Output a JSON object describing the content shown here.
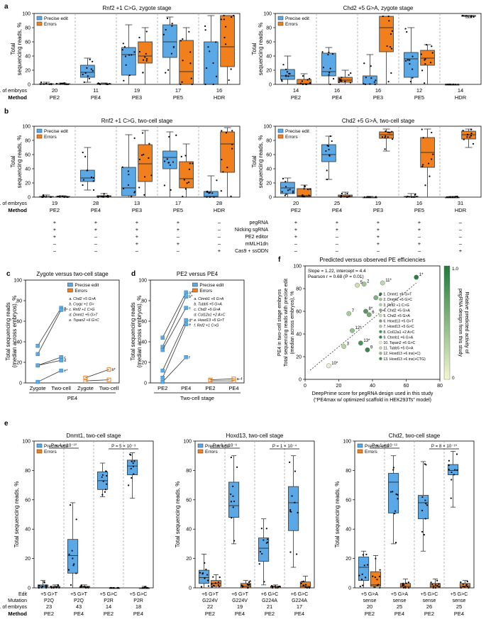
{
  "colors": {
    "precise": "#5aa9e6",
    "errors": "#f07f1c",
    "box_stroke": "#333333",
    "dash": "#9a9a9a",
    "green_dark": "#1f7a3a",
    "green_light": "#f5f7d0"
  },
  "panels": {
    "a": {
      "letter": "a"
    },
    "b": {
      "letter": "b"
    },
    "c": {
      "letter": "c"
    },
    "d": {
      "letter": "d"
    },
    "e": {
      "letter": "e"
    },
    "f": {
      "letter": "f"
    }
  },
  "common": {
    "ylabel_ab": [
      "Total",
      "sequencing reads, %"
    ],
    "ylabel_cd": [
      "Total sequencing reads",
      "(median across embryos), %"
    ],
    "ylabel_e": "Total sequencing reads, %",
    "legend_precise": "Precise edit",
    "legend_errors": "Errors",
    "row_embryos": "No. of embryos",
    "row_method": "Method",
    "row_edit": "Edit",
    "row_mutation": "Mutation"
  },
  "conditions_table": {
    "rows": [
      "pegRNA",
      "Nicking sgRNA",
      "PE2 editor",
      "mMLH1dn",
      "Cas9 + ssODN"
    ],
    "values": [
      [
        "+",
        "+",
        "+",
        "+",
        "–"
      ],
      [
        "+",
        "+",
        "+",
        "+",
        "–"
      ],
      [
        "+",
        "–",
        "+",
        "–",
        "–"
      ],
      [
        "–",
        "–",
        "+",
        "+",
        "–"
      ],
      [
        "–",
        "–",
        "–",
        "–",
        "+"
      ]
    ]
  },
  "chart_data": [
    {
      "panel": "a-left",
      "type": "box",
      "title": "Rnf2 +1 C>G, zygote stage",
      "ylim": [
        0,
        100
      ],
      "yticks": [
        0,
        20,
        40,
        60,
        80,
        100
      ],
      "categories": [
        "PE2",
        "PE4",
        "PE3",
        "PE5",
        "HDR"
      ],
      "embryos": [
        "20",
        "11",
        "19",
        "17",
        "16"
      ],
      "series": [
        {
          "name": "Precise edit",
          "box": [
            [
              0,
              0,
              0,
              1,
              3
            ],
            [
              3,
              10,
              17,
              27,
              37
            ],
            [
              0,
              13,
              42,
              52,
              84
            ],
            [
              0,
              38,
              60,
              84,
              95
            ],
            [
              0,
              0,
              0,
              60,
              97
            ]
          ]
        },
        {
          "name": "Errors",
          "box": [
            [
              0,
              0,
              0,
              1,
              2
            ],
            [
              0,
              0,
              0,
              1,
              2
            ],
            [
              0,
              30,
              40,
              60,
              80
            ],
            [
              0,
              0,
              18,
              62,
              80
            ],
            [
              0,
              25,
              53,
              97,
              97
            ]
          ]
        }
      ]
    },
    {
      "panel": "a-right",
      "type": "box",
      "title": "Chd2 +5 G>A, zygote stage",
      "ylim": [
        0,
        100
      ],
      "yticks": [
        0,
        20,
        40,
        60,
        80,
        100
      ],
      "categories": [
        "PE2",
        "PE4",
        "PE3",
        "PE5",
        "HDR"
      ],
      "embryos": [
        "14",
        "16",
        "16",
        "12",
        "14"
      ],
      "series": [
        {
          "name": "Precise edit",
          "box": [
            [
              0,
              7,
              12,
              21,
              40
            ],
            [
              0,
              12,
              18,
              44,
              52
            ],
            [
              0,
              0,
              0,
              12,
              42
            ],
            [
              0,
              10,
              36,
              45,
              80
            ],
            [
              0,
              0,
              0,
              0,
              0
            ]
          ]
        },
        {
          "name": "Errors",
          "box": [
            [
              0,
              0,
              1,
              7,
              15
            ],
            [
              0,
              3,
              6,
              10,
              20
            ],
            [
              0,
              46,
              80,
              96,
              96
            ],
            [
              0,
              27,
              37,
              48,
              56
            ],
            [
              94,
              96,
              97,
              97,
              97
            ]
          ]
        }
      ]
    },
    {
      "panel": "b-left",
      "type": "box",
      "title": "Rnf2 +1 C>G, two-cell stage",
      "ylim": [
        0,
        100
      ],
      "yticks": [
        0,
        20,
        40,
        60,
        80,
        100
      ],
      "categories": [
        "PE2",
        "PE4",
        "PE3",
        "PE5",
        "HDR"
      ],
      "embryos": [
        "19",
        "28",
        "13",
        "17",
        "28"
      ],
      "series": [
        {
          "name": "Precise edit",
          "box": [
            [
              0,
              0,
              0,
              1,
              3
            ],
            [
              10,
              22,
              27,
              38,
              70
            ],
            [
              0,
              2,
              13,
              42,
              88
            ],
            [
              0,
              40,
              56,
              65,
              92
            ],
            [
              0,
              0,
              1,
              8,
              30
            ]
          ]
        },
        {
          "name": "Errors",
          "box": [
            [
              0,
              0,
              0,
              1,
              2
            ],
            [
              0,
              0,
              1,
              2,
              5
            ],
            [
              0,
              22,
              47,
              74,
              94
            ],
            [
              0,
              13,
              26,
              50,
              75
            ],
            [
              0,
              35,
              75,
              92,
              98
            ]
          ]
        }
      ]
    },
    {
      "panel": "b-right",
      "type": "box",
      "title": "Chd2 +5 G>A, two-cell stage",
      "ylim": [
        0,
        100
      ],
      "yticks": [
        0,
        20,
        40,
        60,
        80,
        100
      ],
      "categories": [
        "PE2",
        "PE4",
        "PE3",
        "PE5",
        "HDR"
      ],
      "embryos": [
        "20",
        "25",
        "19",
        "16",
        "31"
      ],
      "series": [
        {
          "name": "Precise edit",
          "box": [
            [
              0,
              5,
              13,
              21,
              27
            ],
            [
              25,
              50,
              60,
              74,
              86
            ],
            [
              0,
              0,
              0,
              0,
              1
            ],
            [
              0,
              0,
              0,
              1,
              5
            ],
            [
              0,
              0,
              0,
              0,
              1
            ]
          ]
        },
        {
          "name": "Errors",
          "box": [
            [
              0,
              1,
              2,
              12,
              17
            ],
            [
              0,
              0,
              1,
              3,
              7
            ],
            [
              65,
              83,
              88,
              92,
              96
            ],
            [
              0,
              42,
              63,
              84,
              96
            ],
            [
              70,
              82,
              88,
              93,
              96
            ]
          ]
        }
      ]
    },
    {
      "panel": "c",
      "type": "line",
      "title": "Zygote versus two-cell stage",
      "xgroup": "PE4",
      "ylim": [
        0,
        100
      ],
      "yticks": [
        0,
        20,
        40,
        60,
        80,
        100
      ],
      "categories": [
        "Zygote",
        "Two-cell",
        "Zygote",
        "Two-cell"
      ],
      "precise": [
        {
          "label": "a",
          "y": [
            36,
            73
          ]
        },
        {
          "label": "b*",
          "y": [
            28,
            71
          ]
        },
        {
          "label": "c",
          "y": [
            17,
            25
          ]
        },
        {
          "label": "d",
          "y": [
            17,
            22
          ]
        },
        {
          "label": "e*",
          "y": [
            1,
            12
          ]
        }
      ],
      "errors": [
        {
          "label": "b*",
          "y": [
            5,
            13
          ]
        },
        {
          "label": "",
          "y": [
            2,
            3
          ]
        }
      ],
      "legend_items": [
        "a. Chd2 +5 G>A",
        "b. Crygc +1 G>",
        "c. Rnf2 +1 C>G",
        "d. Dnmt1 +5 G>T",
        "e. Tspan2 +6 G>C"
      ]
    },
    {
      "panel": "d",
      "type": "line",
      "title": "PE2 versus PE4",
      "xgroup": "Two-cell stage",
      "ylim": [
        0,
        100
      ],
      "yticks": [
        0,
        20,
        40,
        60,
        80,
        100
      ],
      "categories": [
        "PE2",
        "PE4",
        "PE2",
        "PE4"
      ],
      "precise": [
        {
          "label": "a*",
          "y": [
            44,
            88
          ]
        },
        {
          "label": "b*",
          "y": [
            35,
            84
          ]
        },
        {
          "label": "c",
          "y": [
            32,
            73
          ]
        },
        {
          "label": "d*",
          "y": [
            12,
            61
          ]
        },
        {
          "label": "e",
          "y": [
            5,
            57
          ]
        },
        {
          "label": "f",
          "y": [
            1,
            25
          ]
        }
      ],
      "errors": [
        {
          "label": "a–f",
          "y": [
            3,
            4
          ]
        },
        {
          "label": "",
          "y": [
            2,
            2
          ]
        }
      ],
      "legend_items": [
        "a. Ctnnb1 +6 G>A",
        "b. Tubb5 +5 G>A",
        "c. Chd2 +5 G>A",
        "d. Col12a1 +2 A>C",
        "e. Hoxd13 +5 G>T",
        "f. Rnf2 +1 C>G"
      ]
    },
    {
      "panel": "f",
      "type": "scatter",
      "title": "Predicted versus observed PE efficiencies",
      "stats": [
        "Slope = 1.22, intercept = 4.4",
        "Pearson r = 0.68 (P = 0.01)"
      ],
      "xlabel": [
        "DeepPrime score for pegRNA design used in this study",
        "(“PE4max w/ optimized scaffold in HEK293Ts” model)"
      ],
      "ylabel": [
        "PE4 in two-cell stage embryos",
        "Total sequencing reads with precise edit",
        "(median across embryos), %"
      ],
      "colorbar_label": [
        "Relative predicted activity of",
        "pegRNA design from this study"
      ],
      "xlim": [
        0,
        80
      ],
      "ylim": [
        0,
        100
      ],
      "xticks": [
        0,
        20,
        40,
        60,
        80
      ],
      "yticks": [
        0,
        20,
        40,
        60,
        80,
        100
      ],
      "cbticks": [
        "0",
        "1.0"
      ],
      "points": [
        {
          "label": "1*",
          "x": 66,
          "y": 90,
          "c": 0.95
        },
        {
          "label": "2",
          "x": 35,
          "y": 84,
          "c": 0.4
        },
        {
          "label": "3",
          "x": 23,
          "y": 29,
          "c": 0.3
        },
        {
          "label": "4",
          "x": 42,
          "y": 72,
          "c": 0.55
        },
        {
          "label": "5",
          "x": 31,
          "y": 83,
          "c": 0.2
        },
        {
          "label": "6",
          "x": 38,
          "y": 57,
          "c": 0.6
        },
        {
          "label": "7",
          "x": 26,
          "y": 58,
          "c": 0.35
        },
        {
          "label": "8*",
          "x": 36,
          "y": 60,
          "c": 0.75
        },
        {
          "label": "9",
          "x": 37,
          "y": 26,
          "c": 0.9
        },
        {
          "label": "10*",
          "x": 14,
          "y": 12,
          "c": 0.05
        },
        {
          "label": "11*",
          "x": 46,
          "y": 85,
          "c": 0.25
        },
        {
          "label": "12*",
          "x": 28,
          "y": 43,
          "c": 0.45
        },
        {
          "label": "13*",
          "x": 33,
          "y": 32,
          "c": 0.8
        }
      ],
      "legend_items": [
        "1. Dnmt1 +5 G>T",
        "2. Dnmt1 +5 G>C",
        "3. Rnf2 +1 C>G",
        "4. Chd2 +5 G>A",
        "5. Chd2 +5 G>A",
        "6. Hoxd13 +5 G>T",
        "7. Hoxd13 +5 G>C",
        "8. Col12a1 +2 A>C",
        "9. Ctnnb1 +6 G>A",
        "10. Tspan2 +6 G>C",
        "11. Tubb5 +5 G>A",
        "12. Hoxd13 +6 ins(+C)",
        "13. Hoxd13 +6 ins(+CTG)"
      ]
    },
    {
      "panel": "e-1",
      "type": "box",
      "title": "Dnmt1, two-cell stage",
      "ylim": [
        0,
        100
      ],
      "yticks": [
        0,
        20,
        40,
        60,
        80,
        100
      ],
      "edits": [
        "+5 G>T",
        "+5 G>T",
        "+5 G>C",
        "+5 G>C"
      ],
      "mutations": [
        "P2Q",
        "P2Q",
        "P2R",
        "P2R"
      ],
      "embryos": [
        "23",
        "43",
        "14",
        "18"
      ],
      "categories": [
        "PE2",
        "PE4",
        "PE2",
        "PE4"
      ],
      "pvals": [
        "P = 4 × 10⁻¹⁰",
        "P = 5 × 10⁻³"
      ],
      "series": [
        {
          "name": "Precise edit",
          "box": [
            [
              0,
              0,
              1,
              2,
              5
            ],
            [
              0,
              10,
              22,
              33,
              58
            ],
            [
              62,
              67,
              73,
              79,
              85
            ],
            [
              61,
              77,
              83,
              87,
              92
            ]
          ]
        },
        {
          "name": "Errors",
          "box": [
            [
              0,
              0,
              0,
              1,
              2
            ],
            [
              0,
              0,
              0,
              1,
              2
            ],
            [
              0,
              0,
              0,
              0,
              0
            ],
            [
              0,
              0,
              0,
              0,
              1
            ]
          ]
        }
      ]
    },
    {
      "panel": "e-2",
      "type": "box",
      "title": "Hoxd13, two-cell stage",
      "ylim": [
        0,
        100
      ],
      "yticks": [
        0,
        20,
        40,
        60,
        80,
        100
      ],
      "edits": [
        "+6 G>T",
        "+6 G>T",
        "+6 G>C",
        "+6 G>C"
      ],
      "mutations": [
        "G224V",
        "G224V",
        "G224A",
        "G224A"
      ],
      "embryos": [
        "22",
        "19",
        "21",
        "17"
      ],
      "categories": [
        "PE2",
        "PE4",
        "PE2",
        "PE4"
      ],
      "pvals": [
        "P = 6 × 10⁻⁶",
        "P = 1 × 10⁻⁴"
      ],
      "series": [
        {
          "name": "Precise edit",
          "box": [
            [
              0,
              3,
              7,
              12,
              23
            ],
            [
              30,
              48,
              56,
              72,
              90
            ],
            [
              2,
              18,
              27,
              34,
              47
            ],
            [
              14,
              39,
              58,
              69,
              90
            ]
          ]
        },
        {
          "name": "Errors",
          "box": [
            [
              0,
              1,
              3,
              5,
              9
            ],
            [
              0,
              0,
              1,
              3,
              5
            ],
            [
              0,
              0,
              1,
              1,
              2
            ],
            [
              0,
              0,
              1,
              4,
              8
            ]
          ]
        }
      ]
    },
    {
      "panel": "e-3",
      "type": "box",
      "title": "Chd2, two-cell stage",
      "ylim": [
        0,
        100
      ],
      "yticks": [
        0,
        20,
        40,
        60,
        80,
        100
      ],
      "edits": [
        "+5 G>A",
        "+5 G>A",
        "+5 G>C",
        "+5 G>C"
      ],
      "mutations": [
        "sense",
        "sense",
        "sense",
        "sense"
      ],
      "embryos": [
        "20",
        "25",
        "26",
        "25"
      ],
      "categories": [
        "PE2",
        "PE4",
        "PE2",
        "PE4"
      ],
      "pvals": [
        "P = 1 × 10⁻¹²",
        "P = 8 × 10⁻¹⁰"
      ],
      "series": [
        {
          "name": "Precise edit",
          "box": [
            [
              0,
              5,
              14,
              21,
              25
            ],
            [
              30,
              51,
              72,
              78,
              90
            ],
            [
              25,
              47,
              58,
              63,
              86
            ],
            [
              55,
              77,
              80,
              84,
              93
            ]
          ]
        },
        {
          "name": "Errors",
          "box": [
            [
              0,
              1,
              2,
              11,
              22
            ],
            [
              0,
              0,
              1,
              3,
              6
            ],
            [
              0,
              0,
              1,
              3,
              6
            ],
            [
              0,
              0,
              1,
              3,
              5
            ]
          ]
        }
      ]
    }
  ]
}
